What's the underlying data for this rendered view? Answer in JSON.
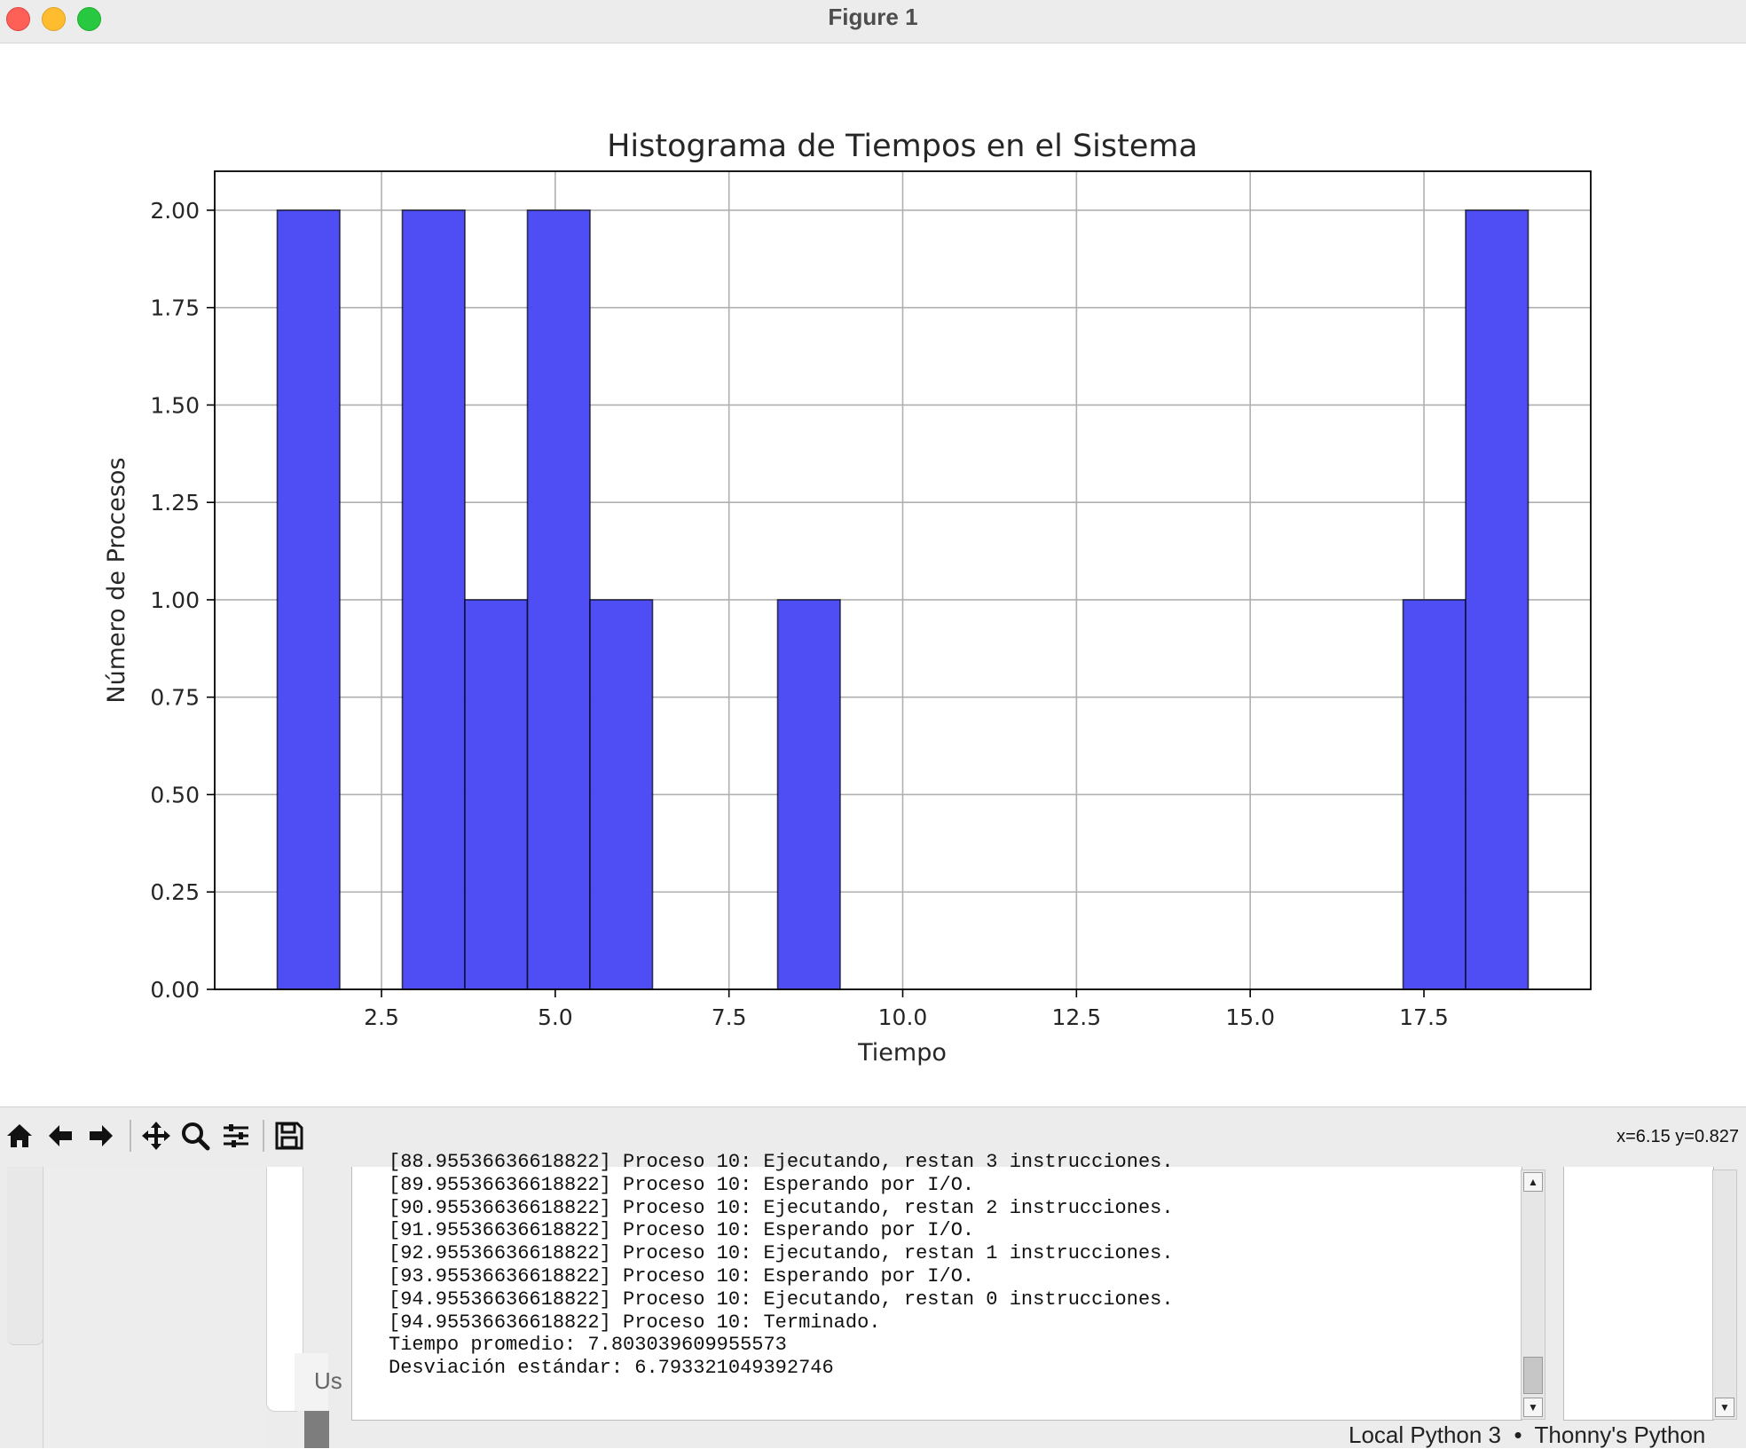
{
  "window": {
    "title": "Figure 1"
  },
  "chart_data": {
    "type": "bar",
    "title": "Histograma de Tiempos en el Sistema",
    "xlabel": "Tiempo",
    "ylabel": "Número de Procesos",
    "bins": [
      {
        "from": 1.0,
        "to": 1.9,
        "count": 2
      },
      {
        "from": 2.8,
        "to": 3.7,
        "count": 2
      },
      {
        "from": 3.7,
        "to": 4.6,
        "count": 1
      },
      {
        "from": 4.6,
        "to": 5.5,
        "count": 2
      },
      {
        "from": 5.5,
        "to": 6.4,
        "count": 1
      },
      {
        "from": 8.2,
        "to": 9.1,
        "count": 1
      },
      {
        "from": 17.2,
        "to": 18.1,
        "count": 1
      },
      {
        "from": 18.1,
        "to": 19.0,
        "count": 2
      }
    ],
    "xlim": [
      0.1,
      19.9
    ],
    "ylim": [
      0,
      2.1
    ],
    "xticks": [
      {
        "value": 2.5,
        "label": "2.5"
      },
      {
        "value": 5.0,
        "label": "5.0"
      },
      {
        "value": 7.5,
        "label": "7.5"
      },
      {
        "value": 10.0,
        "label": "10.0"
      },
      {
        "value": 12.5,
        "label": "12.5"
      },
      {
        "value": 15.0,
        "label": "15.0"
      },
      {
        "value": 17.5,
        "label": "17.5"
      }
    ],
    "yticks": [
      {
        "value": 0.0,
        "label": "0.00"
      },
      {
        "value": 0.25,
        "label": "0.25"
      },
      {
        "value": 0.5,
        "label": "0.50"
      },
      {
        "value": 0.75,
        "label": "0.75"
      },
      {
        "value": 1.0,
        "label": "1.00"
      },
      {
        "value": 1.25,
        "label": "1.25"
      },
      {
        "value": 1.5,
        "label": "1.50"
      },
      {
        "value": 1.75,
        "label": "1.75"
      },
      {
        "value": 2.0,
        "label": "2.00"
      }
    ],
    "grid": true,
    "bar_color": "#4a4af4",
    "edge_color": "#000000"
  },
  "toolbar": {
    "buttons": [
      "home-icon",
      "back-arrow-icon",
      "forward-arrow-icon",
      "pan-icon",
      "zoom-icon",
      "configure-subplots-icon",
      "save-icon"
    ],
    "coordinates": "x=6.15 y=0.827"
  },
  "shell": {
    "lines": [
      "[88.95536636618822] Proceso 10: Ejecutando, restan 3 instrucciones.",
      "[89.95536636618822] Proceso 10: Esperando por I/O.",
      "[90.95536636618822] Proceso 10: Ejecutando, restan 2 instrucciones.",
      "[91.95536636618822] Proceso 10: Esperando por I/O.",
      "[92.95536636618822] Proceso 10: Ejecutando, restan 1 instrucciones.",
      "[93.95536636618822] Proceso 10: Esperando por I/O.",
      "[94.95536636618822] Proceso 10: Ejecutando, restan 0 instrucciones.",
      "[94.95536636618822] Proceso 10: Terminado.",
      "Tiempo promedio: 7.803039609955573",
      "Desviación estándar: 6.793321049392746"
    ]
  },
  "background": {
    "tab_fragment": "Us",
    "status": "Local Python 3  •  Thonny's Python"
  }
}
